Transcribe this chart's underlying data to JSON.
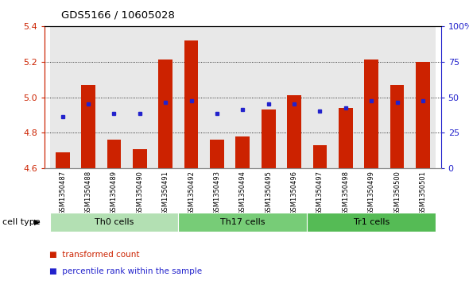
{
  "title": "GDS5166 / 10605028",
  "samples": [
    "GSM1350487",
    "GSM1350488",
    "GSM1350489",
    "GSM1350490",
    "GSM1350491",
    "GSM1350492",
    "GSM1350493",
    "GSM1350494",
    "GSM1350495",
    "GSM1350496",
    "GSM1350497",
    "GSM1350498",
    "GSM1350499",
    "GSM1350500",
    "GSM1350501"
  ],
  "bar_values": [
    4.69,
    5.07,
    4.76,
    4.71,
    5.21,
    5.32,
    4.76,
    4.78,
    4.93,
    5.01,
    4.73,
    4.94,
    5.21,
    5.07,
    5.2
  ],
  "dot_values": [
    4.89,
    4.96,
    4.91,
    4.91,
    4.97,
    4.98,
    4.91,
    4.93,
    4.96,
    4.96,
    4.92,
    4.94,
    4.98,
    4.97,
    4.98
  ],
  "ylim": [
    4.6,
    5.4
  ],
  "yticks_left": [
    4.6,
    4.8,
    5.0,
    5.2,
    5.4
  ],
  "yticks_right": [
    0,
    25,
    50,
    75,
    100
  ],
  "bar_color": "#cc2200",
  "dot_color": "#2222cc",
  "cell_groups": [
    {
      "label": "Th0 cells",
      "start": 0,
      "end": 5,
      "color": "#b3e0b3"
    },
    {
      "label": "Th17 cells",
      "start": 5,
      "end": 10,
      "color": "#77cc77"
    },
    {
      "label": "Tr1 cells",
      "start": 10,
      "end": 15,
      "color": "#55bb55"
    }
  ],
  "bar_width": 0.55,
  "baseline": 4.6,
  "col_bg_color": "#cccccc",
  "col_bg_alpha": 0.45,
  "plot_bg_color": "#ffffff",
  "spine_color": "#000000",
  "grid_color": "#000000",
  "legend_red_label": "transformed count",
  "legend_blue_label": "percentile rank within the sample",
  "cell_type_label": "cell type"
}
